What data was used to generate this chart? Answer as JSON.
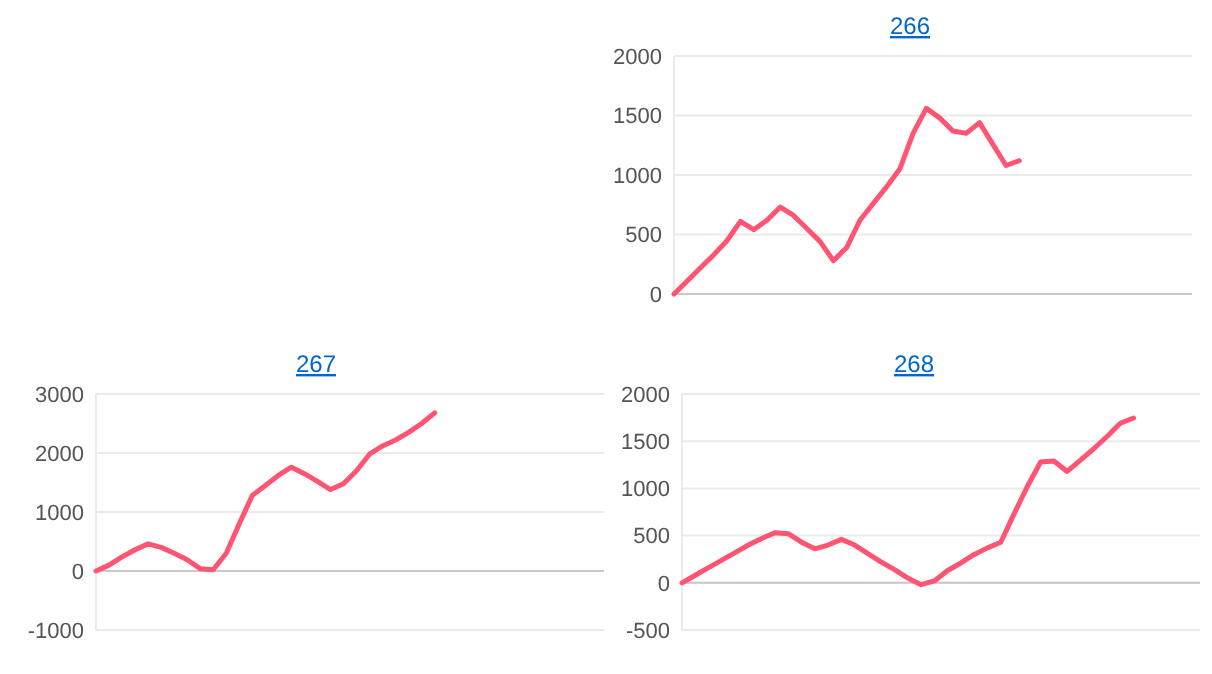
{
  "chart_data": [
    {
      "type": "line",
      "title": "266",
      "categories": [
        null,
        null,
        null,
        null,
        null,
        null,
        null,
        null,
        null,
        null,
        null,
        null,
        null,
        null,
        null,
        null,
        null,
        null,
        null,
        null,
        null,
        null,
        null,
        null,
        null,
        null,
        null,
        null,
        null,
        null,
        null,
        null,
        null,
        null,
        null,
        null,
        null,
        null,
        null,
        null
      ],
      "series": [
        {
          "color": "#ff5472",
          "values": [
            0,
            110,
            220,
            330,
            450,
            610,
            540,
            620,
            730,
            660,
            550,
            440,
            280,
            390,
            620,
            760,
            900,
            1050,
            1350,
            1560,
            1480,
            1370,
            1350,
            1440,
            1260,
            1080,
            1120,
            null,
            null,
            null,
            null,
            null,
            null,
            null,
            null,
            null,
            null,
            null,
            null,
            null
          ]
        }
      ],
      "ylim": [
        0,
        2000
      ],
      "yticks": [
        0,
        500,
        1000,
        1500,
        2000
      ],
      "grid": "y",
      "tick_labels": "y"
    },
    {
      "type": "line",
      "title": "267",
      "categories": [
        null,
        null,
        null,
        null,
        null,
        null,
        null,
        null,
        null,
        null,
        null,
        null,
        null,
        null,
        null,
        null,
        null,
        null,
        null,
        null,
        null,
        null,
        null,
        null,
        null,
        null,
        null,
        null,
        null,
        null,
        null,
        null,
        null,
        null,
        null,
        null,
        null,
        null,
        null,
        null
      ],
      "series": [
        {
          "color": "#ff5472",
          "values": [
            0,
            100,
            240,
            360,
            460,
            400,
            300,
            190,
            40,
            20,
            300,
            800,
            1280,
            1450,
            1620,
            1760,
            1650,
            1520,
            1380,
            1480,
            1700,
            1980,
            2120,
            2220,
            2350,
            2500,
            2680,
            null,
            null,
            null,
            null,
            null,
            null,
            null,
            null,
            null,
            null,
            null,
            null,
            null
          ]
        }
      ],
      "ylim": [
        -1000,
        3000
      ],
      "yticks": [
        -1000,
        0,
        1000,
        2000,
        3000
      ],
      "grid": "y",
      "tick_labels": "y"
    },
    {
      "type": "line",
      "title": "268",
      "categories": [
        null,
        null,
        null,
        null,
        null,
        null,
        null,
        null,
        null,
        null,
        null,
        null,
        null,
        null,
        null,
        null,
        null,
        null,
        null,
        null,
        null,
        null,
        null,
        null,
        null,
        null,
        null,
        null,
        null,
        null,
        null,
        null,
        null,
        null,
        null,
        null,
        null,
        null,
        null,
        null
      ],
      "series": [
        {
          "color": "#ff5472",
          "values": [
            0,
            80,
            160,
            240,
            320,
            400,
            470,
            530,
            520,
            430,
            360,
            400,
            460,
            400,
            310,
            220,
            140,
            50,
            -20,
            20,
            130,
            210,
            300,
            370,
            430,
            730,
            1020,
            1280,
            1290,
            1180,
            1300,
            1420,
            1550,
            1690,
            1746,
            null,
            null,
            null,
            null,
            null
          ]
        }
      ],
      "ylim": [
        -500,
        2000
      ],
      "yticks": [
        -500,
        0,
        500,
        1000,
        1500,
        2000
      ],
      "grid": "y",
      "tick_labels": "y"
    }
  ]
}
